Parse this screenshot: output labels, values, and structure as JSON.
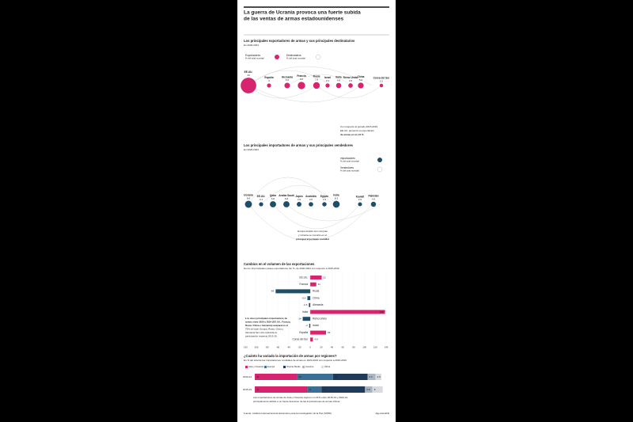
{
  "header": {
    "title": [
      "La guerra de Ucrania provoca una fuerte subida",
      "de las ventas de armas estadounidenses"
    ]
  },
  "chart_data": [
    {
      "type": "bubble",
      "title": "Los principales exportadores de armas y sus principales destinatarios",
      "subtitle": "En 2020-2024",
      "legend": [
        {
          "name": "Exportadores",
          "note": "% del total mundial",
          "color": "#d6246e"
        },
        {
          "name": "Destinatarios",
          "note": "% del total mundial",
          "color": "#bbbbbb"
        }
      ],
      "categories": [
        "EE.UU.",
        "España",
        "Alemania",
        "Francia",
        "Rusia",
        "Israel",
        "Italia",
        "Reino Unido",
        "China",
        "Corea del Sur"
      ],
      "values": [
        43,
        3,
        5.6,
        9.6,
        7.8,
        3.1,
        4.8,
        3.6,
        5.9,
        2.2
      ],
      "color": "#d6246e",
      "annotation": [
        "Con respecto al periodo 2015-2019,",
        "EE.UU. aumentó su exportación",
        "de armas en un 21 %"
      ]
    },
    {
      "type": "bubble",
      "title": "Los principales importadores de armas y sus principales vendedores",
      "subtitle": "En 2020-2024",
      "legend": [
        {
          "name": "Importadores",
          "note": "% del total mundial",
          "color": "#1f4e6b"
        },
        {
          "name": "Vendedores",
          "note": "% del total mundial",
          "color": "#bbbbbb"
        }
      ],
      "categories": [
        "Ucrania",
        "EE.UU.",
        "Qatar",
        "Arabia Saudí",
        "Japón",
        "Australia",
        "Egipto",
        "India",
        "Kuwait",
        "Pakistán"
      ],
      "values": [
        8.8,
        3.1,
        6.8,
        6.8,
        3.9,
        3.5,
        3.3,
        8.3,
        2.9,
        4.6
      ],
      "color": "#1f4e6b",
      "annotation": [
        "Europa duplicó sus compras",
        "y Ucrania se convirtió en el",
        "principal importador mundial"
      ]
    },
    {
      "type": "hbar",
      "title": "Cambios en el volumen de las exportaciones",
      "subtitle": "De los 10 principales países exportadores. En %, de 2020-2024 con respecto a 2015-2019",
      "categories": [
        "EE.UU.",
        "Francia",
        "Rusia",
        "China",
        "Alemania",
        "Italia",
        "Reino Unido",
        "Israel",
        "España",
        "Corea del Sur"
      ],
      "values": [
        21,
        11,
        -64,
        -5.4,
        -2.6,
        138,
        -14,
        -2,
        29,
        4.8
      ],
      "colors": {
        "positive": "#d6246e",
        "negative": "#1f4e6b"
      },
      "xlim": [
        -120,
        140
      ],
      "xticks": [
        -120,
        -100,
        -80,
        -60,
        -40,
        -20,
        0,
        20,
        40,
        60,
        80,
        100,
        120,
        140
      ],
      "annotation": [
        "Los cinco principales importadores de",
        "armas entre 2020 y 2024 (EE.UU., Francia,",
        "Rusia, China e Alemania) acapararon el",
        "75% del total. Europa, Rusia, China y",
        "Alemania han visto reducida su",
        "participación respecto 2015-19."
      ]
    },
    {
      "type": "stacked-hbar",
      "title": "¿Cuánto ha variado la importación de armas por regiones?",
      "subtitle": "En % del total de las importaciones mundiales de armas en 2020-2024 con respecto a 2015-2019",
      "categories": [
        "2020-24",
        "2015-19"
      ],
      "series": [
        {
          "name": "Asia y Oceanía",
          "color": "#d6246e",
          "values": [
            33,
            41
          ]
        },
        {
          "name": "Europa",
          "color": "#3b6f93",
          "values": [
            28,
            11
          ]
        },
        {
          "name": "Oriente Medio",
          "color": "#1f3b57",
          "values": [
            27,
            34
          ]
        },
        {
          "name": "América",
          "color": "#a9b6c2",
          "values": [
            6.2,
            5.8
          ]
        },
        {
          "name": "África",
          "color": "#d5dbe1",
          "values": [
            4.5,
            8
          ]
        }
      ],
      "xlim": [
        0,
        100
      ],
      "annotation": [
        "Las importaciones de armas de Asia y Oceanía cayeron un 21% entre 2015-19 y 2020-24,",
        "principalmente debido a un fuerte descenso de las importaciones de armas chinas."
      ]
    }
  ],
  "footer": {
    "source": "Fuente: Instituto Internacional de Estocolmo para la Investigación de la Paz (SIPRI)",
    "credit": "Agencia EFE"
  }
}
